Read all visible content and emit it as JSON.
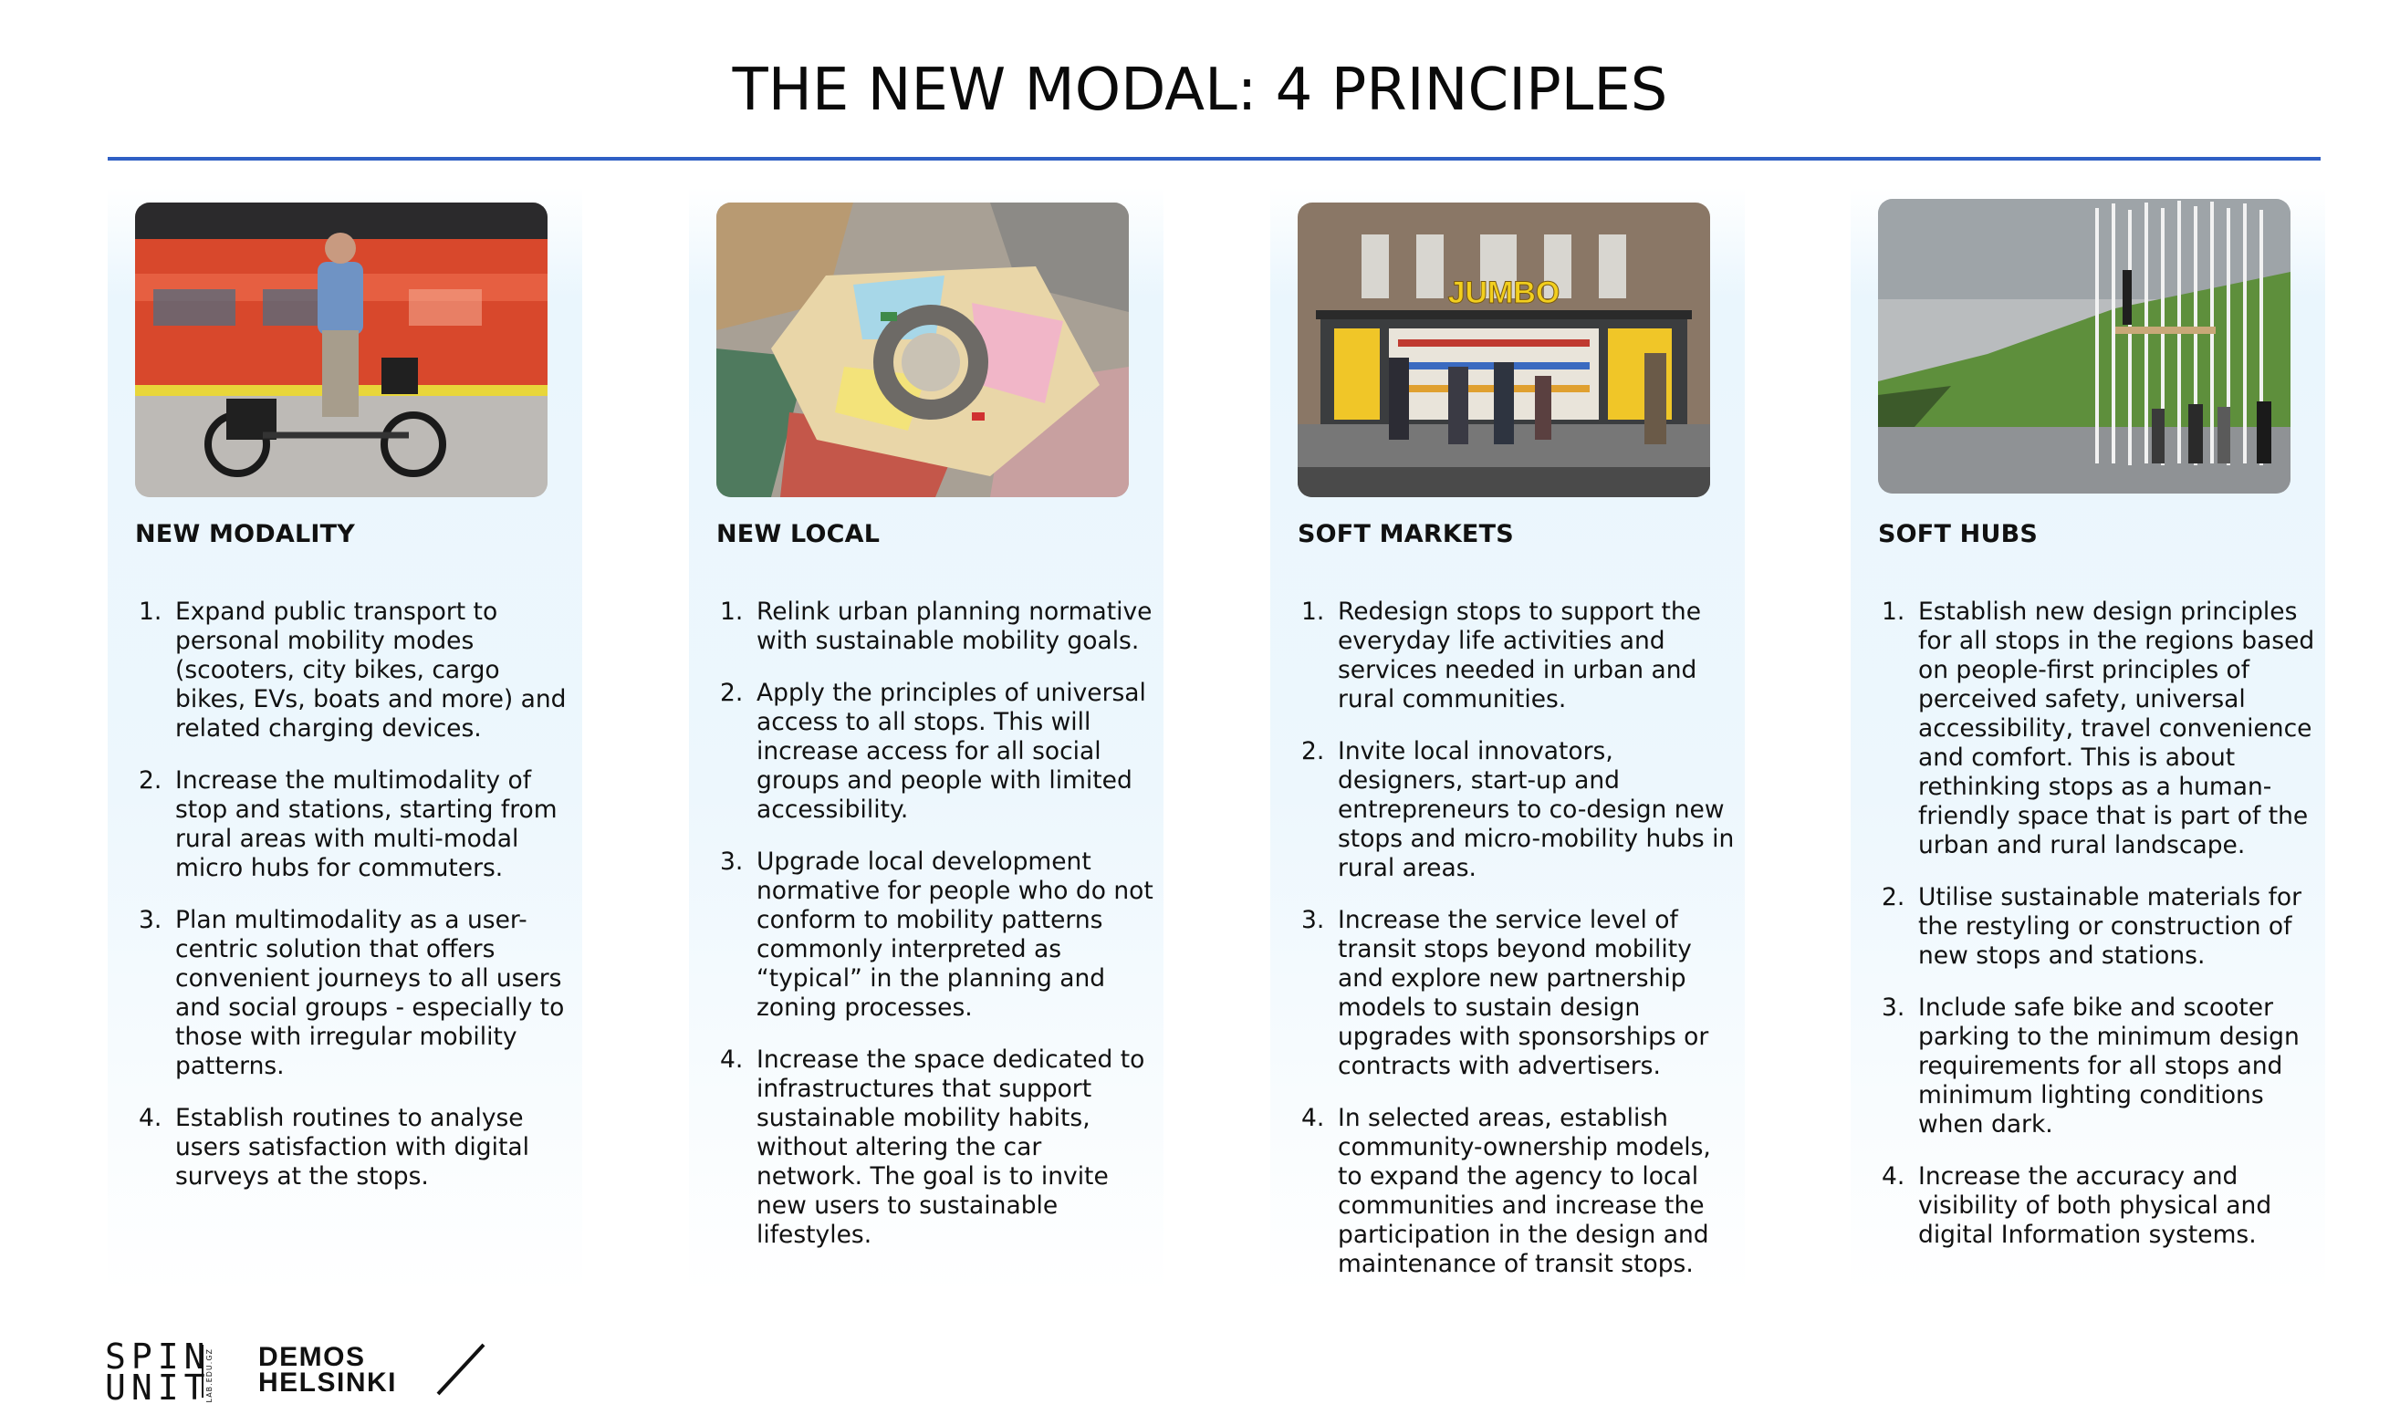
{
  "title": "THE NEW MODAL:  4 PRINCIPLES",
  "accent_color": "#2f5fc4",
  "columns": [
    {
      "heading": "NEW MODALITY",
      "photo": "person-with-cargo-ebike-at-metro-platform",
      "points": [
        {
          "n": "1.",
          "text": "Expand public transport to personal mobility modes (scooters, city bikes, cargo bikes, EVs, boats and more) and related charging devices."
        },
        {
          "n": "2.",
          "text": "Increase the multimodality of stop and stations, starting from rural areas with multi-modal micro hubs for commuters."
        },
        {
          "n": "3.",
          "text": "Plan multimodality as a user-centric solution that offers convenient journeys to all users and social groups - especially to those with irregular mobility patterns."
        },
        {
          "n": "4.",
          "text": "Establish routines to analyse users satisfaction with digital surveys at the stops."
        }
      ]
    },
    {
      "heading": "NEW LOCAL",
      "photo": "aerial-colorful-painted-roundabout",
      "points": [
        {
          "n": "1.",
          "text": "Relink urban planning normative with sustainable mobility goals."
        },
        {
          "n": "2.",
          "text": "Apply the principles of universal access to all stops. This will increase access for all social groups and people with limited accessibility."
        },
        {
          "n": "3.",
          "text": "Upgrade local development normative for people who do not conform to mobility patterns commonly interpreted as “typical” in the planning and zoning processes."
        },
        {
          "n": "4.",
          "text": "Increase the space dedicated to infrastructures that support sustainable mobility habits, without altering the car network. The goal is to invite new users to sustainable lifestyles."
        }
      ]
    },
    {
      "heading": "SOFT MARKETS",
      "photo": "bus-stop-with-vending-market",
      "sign": "JUMBO",
      "points": [
        {
          "n": "1.",
          "text": "Redesign stops to support the everyday life activities and services needed in urban and rural communities."
        },
        {
          "n": "2.",
          "text": "Invite local innovators, designers, start-up and entrepreneurs to co-design new stops and micro-mobility hubs in rural areas."
        },
        {
          "n": "3.",
          "text": "Increase the service level of transit stops beyond mobility and explore new partnership models to sustain design upgrades with sponsorships or contracts with advertisers."
        },
        {
          "n": "4.",
          "text": "In selected areas, establish community-ownership models, to expand the agency to local communities and increase the participation in the design and maintenance of transit stops."
        }
      ]
    },
    {
      "heading": "SOFT HUBS",
      "photo": "white-pole-sculpture-bus-stop-countryside",
      "points": [
        {
          "n": "1.",
          "text": "Establish new design principles for all stops in the regions based on people-first principles of perceived safety, universal accessibility, travel convenience and comfort. This is about rethinking stops as a human-friendly space that is part of the urban and rural landscape."
        },
        {
          "n": "2.",
          "text": "Utilise sustainable materials for the restyling or construction of new stops and stations."
        },
        {
          "n": "3.",
          "text": "Include safe bike and scooter parking to the minimum design requirements for all stops and minimum lighting conditions when dark."
        },
        {
          "n": "4.",
          "text": "Increase the accuracy and visibility of both physical and digital Information systems."
        }
      ]
    }
  ],
  "logos": {
    "spin_line1": "SPIN",
    "spin_line2": "UNIT",
    "spin_sub": "LAB.EDU.GZ",
    "demos_line1": "DEMOS",
    "demos_line2": "HELSINKI"
  }
}
